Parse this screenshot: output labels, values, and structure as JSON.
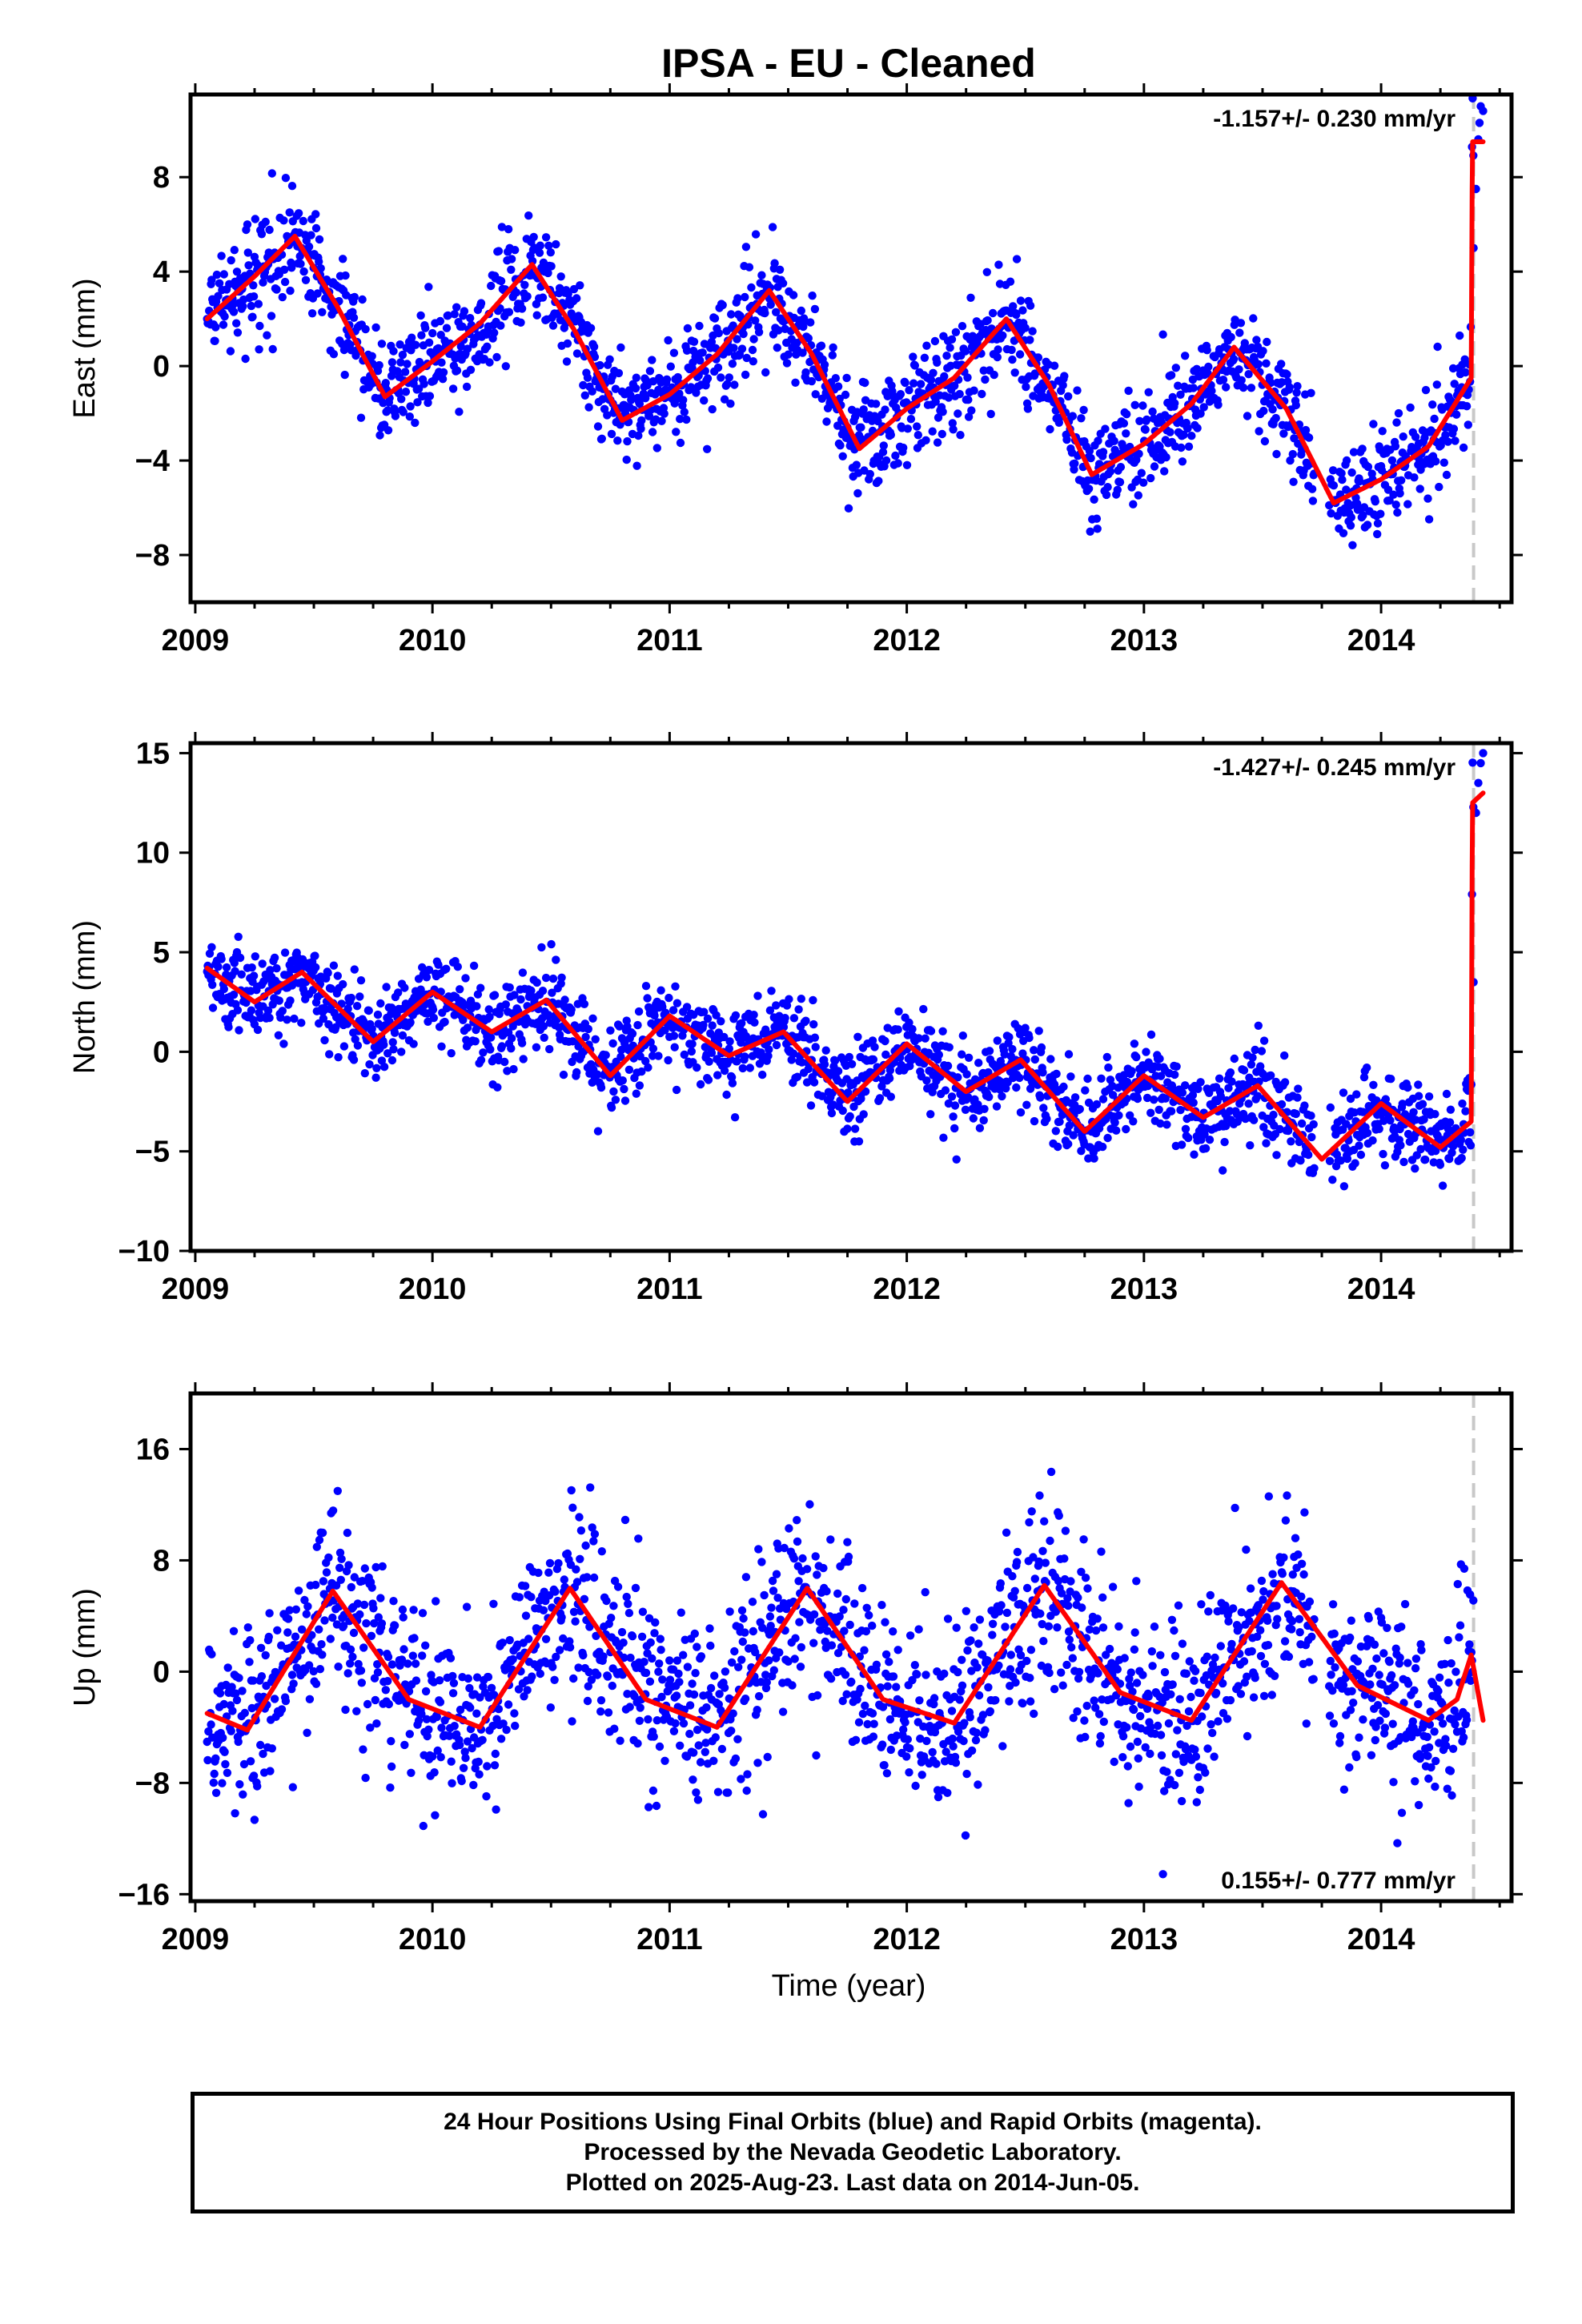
{
  "title": "IPSA  - EU - Cleaned",
  "x_axis_label": "Time (year)",
  "footer": {
    "line1": "24 Hour Positions Using Final Orbits (blue) and Rapid Orbits (magenta).",
    "line2": "Processed by the Nevada Geodetic Laboratory.",
    "line3": "Plotted on 2025-Aug-23. Last data on 2014-Jun-05."
  },
  "colors": {
    "points": "#0000ff",
    "model": "#ff0000",
    "break_line": "#c8c8c8"
  },
  "chart_data": [
    {
      "type": "scatter",
      "component": "East",
      "ylabel": "East (mm)",
      "rate_label": "-1.157+/- 0.230 mm/yr",
      "rate_position": "top-right",
      "xlim": [
        2008.98,
        2014.55
      ],
      "ylim": [
        -10,
        11.5
      ],
      "x_ticks": [
        2009,
        2010,
        2011,
        2012,
        2013,
        2014
      ],
      "y_ticks": [
        -8,
        -4,
        0,
        4,
        8
      ],
      "data_start": 2009.05,
      "data_end": 2014.43,
      "break_epoch": 2014.39,
      "gaps": [
        [
          2013.72,
          2013.78
        ]
      ],
      "trend": {
        "value_at_2009": 2.0,
        "rate_mm_per_yr": -1.157
      },
      "model_curve": {
        "x": [
          2009.05,
          2009.25,
          2009.42,
          2009.6,
          2009.8,
          2010.0,
          2010.2,
          2010.42,
          2010.6,
          2010.8,
          2011.0,
          2011.2,
          2011.42,
          2011.6,
          2011.8,
          2012.0,
          2012.2,
          2012.42,
          2012.6,
          2012.78,
          2013.0,
          2013.2,
          2013.38,
          2013.6,
          2013.8,
          2014.0,
          2014.2,
          2014.38,
          2014.385,
          2014.43
        ],
        "y": [
          2.0,
          3.8,
          5.5,
          2.5,
          -1.3,
          0.2,
          1.8,
          4.3,
          1.5,
          -2.3,
          -1.2,
          0.5,
          3.2,
          0.5,
          -3.5,
          -1.8,
          -0.5,
          2.0,
          -0.8,
          -4.6,
          -3.3,
          -1.6,
          0.8,
          -1.8,
          -5.8,
          -4.8,
          -3.4,
          -0.5,
          9.5,
          9.5
        ]
      },
      "noise_sd": 1.1,
      "post_break_points": {
        "x": [
          2014.39,
          2014.4,
          2014.41,
          2014.415,
          2014.42,
          2014.43
        ],
        "y": [
          5.0,
          7.5,
          9.6,
          10.3,
          11.0,
          10.8
        ]
      }
    },
    {
      "type": "scatter",
      "component": "North",
      "ylabel": "North (mm)",
      "rate_label": "-1.427+/- 0.245 mm/yr",
      "rate_position": "top-right",
      "xlim": [
        2008.98,
        2014.55
      ],
      "ylim": [
        -10,
        15.5
      ],
      "x_ticks": [
        2009,
        2010,
        2011,
        2012,
        2013,
        2014
      ],
      "y_ticks": [
        -10,
        -5,
        0,
        5,
        10,
        15
      ],
      "data_start": 2009.05,
      "data_end": 2014.43,
      "break_epoch": 2014.39,
      "gaps": [
        [
          2013.72,
          2013.78
        ]
      ],
      "trend": {
        "value_at_2009": 4.0,
        "rate_mm_per_yr": -1.427
      },
      "model_curve": {
        "x": [
          2009.05,
          2009.25,
          2009.45,
          2009.75,
          2010.0,
          2010.25,
          2010.48,
          2010.75,
          2011.0,
          2011.25,
          2011.48,
          2011.75,
          2012.0,
          2012.25,
          2012.48,
          2012.75,
          2013.0,
          2013.25,
          2013.48,
          2013.75,
          2014.0,
          2014.25,
          2014.38,
          2014.385,
          2014.43
        ],
        "y": [
          4.2,
          2.5,
          4.0,
          0.5,
          3.0,
          1.0,
          2.6,
          -1.2,
          1.8,
          -0.2,
          1.0,
          -2.5,
          0.4,
          -2.0,
          -0.4,
          -4.0,
          -1.2,
          -3.3,
          -1.7,
          -5.4,
          -2.6,
          -4.8,
          -3.5,
          12.5,
          13.0
        ]
      },
      "noise_sd": 1.1,
      "post_break_points": {
        "x": [
          2014.39,
          2014.4,
          2014.41,
          2014.42,
          2014.43
        ],
        "y": [
          3.5,
          12.0,
          13.5,
          14.5,
          15.0
        ]
      }
    },
    {
      "type": "scatter",
      "component": "Up",
      "ylabel": "Up (mm)",
      "rate_label": "0.155+/- 0.777 mm/yr",
      "rate_position": "bottom-right",
      "xlim": [
        2008.98,
        2014.55
      ],
      "ylim": [
        -16.5,
        20
      ],
      "x_ticks": [
        2009,
        2010,
        2011,
        2012,
        2013,
        2014
      ],
      "y_ticks": [
        -16,
        -8,
        0,
        8,
        16
      ],
      "data_start": 2009.05,
      "data_end": 2014.45,
      "break_epoch": 2014.39,
      "gaps": [
        [
          2013.72,
          2013.78
        ]
      ],
      "trend": {
        "value_at_2009": -3.0,
        "rate_mm_per_yr": 0.155
      },
      "model_curve": {
        "x": [
          2009.05,
          2009.22,
          2009.58,
          2009.9,
          2010.2,
          2010.58,
          2010.9,
          2011.2,
          2011.58,
          2011.9,
          2012.2,
          2012.58,
          2012.9,
          2013.2,
          2013.58,
          2013.9,
          2014.2,
          2014.32,
          2014.38,
          2014.43
        ],
        "y": [
          -3.0,
          -4.2,
          5.8,
          -2.0,
          -4.0,
          6.0,
          -2.0,
          -4.0,
          6.0,
          -2.0,
          -3.7,
          6.2,
          -1.5,
          -3.5,
          6.4,
          -1.0,
          -3.5,
          -2.0,
          1.2,
          -3.5
        ]
      },
      "noise_sd": 3.3
    }
  ]
}
